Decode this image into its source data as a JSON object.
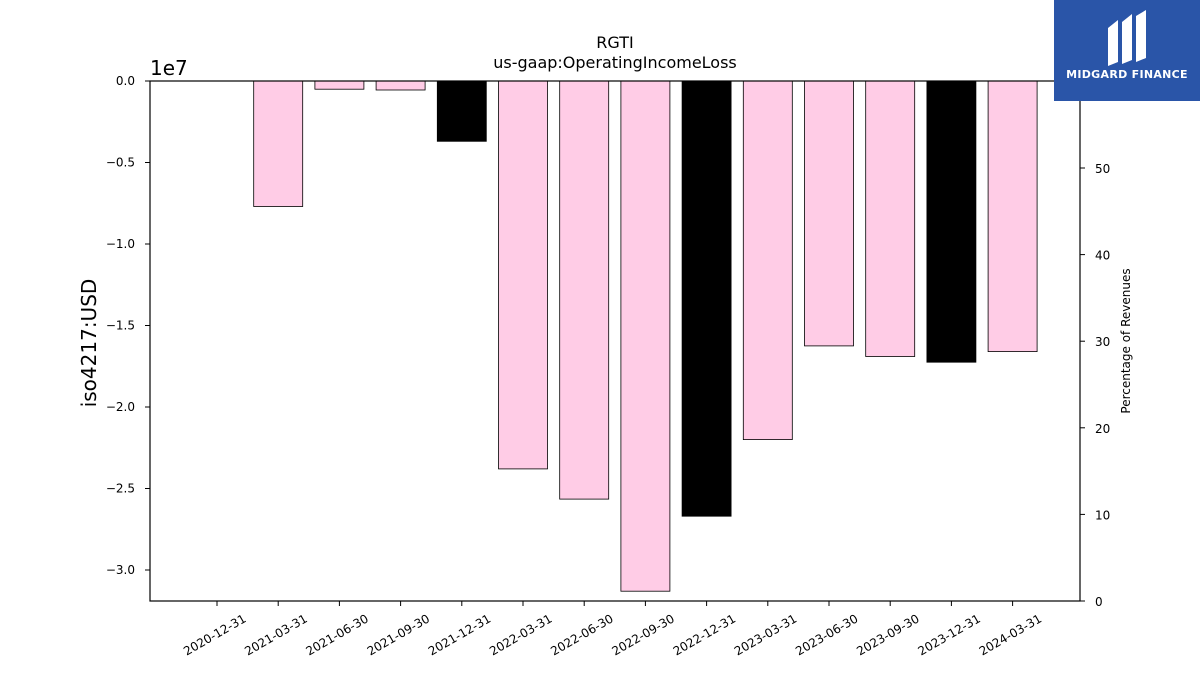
{
  "chart_data": {
    "type": "bar",
    "title": "RGTI",
    "subtitle": "us-gaap:OperatingIncomeLoss",
    "ylabel": "iso4217:USD",
    "y2label": "Percentage of Revenues",
    "offset_label": "1e7",
    "categories": [
      "2020-12-31",
      "2021-03-31",
      "2021-06-30",
      "2021-09-30",
      "2021-12-31",
      "2022-03-31",
      "2022-06-30",
      "2022-09-30",
      "2022-12-31",
      "2023-03-31",
      "2023-06-30",
      "2023-09-30",
      "2023-12-31",
      "2024-03-31"
    ],
    "values": [
      0,
      -7700000,
      -500000,
      -550000,
      -3700000,
      -23800000,
      -25650000,
      -31300000,
      -26700000,
      -22000000,
      -16250000,
      -16900000,
      -17250000,
      -16600000
    ],
    "bar_colors": [
      "#ffcce6",
      "#ffcce6",
      "#ffcce6",
      "#ffcce6",
      "#000000",
      "#ffcce6",
      "#ffcce6",
      "#ffcce6",
      "#000000",
      "#ffcce6",
      "#ffcce6",
      "#ffcce6",
      "#000000",
      "#ffcce6"
    ],
    "ylim": [
      -32000000,
      0
    ],
    "yticks": [
      0,
      -5000000,
      -10000000,
      -15000000,
      -20000000,
      -25000000,
      -30000000
    ],
    "ytick_labels": [
      "0.0",
      "−0.5",
      "−1.0",
      "−1.5",
      "−2.0",
      "−2.5",
      "−3.0"
    ],
    "y2lim": [
      0,
      60
    ],
    "y2ticks": [
      0,
      10,
      20,
      30,
      40,
      50
    ],
    "y2tick_labels": [
      "0",
      "10",
      "20",
      "30",
      "40",
      "50"
    ],
    "grid": false,
    "legend": "none"
  },
  "logo": {
    "text": "MIDGARD FINANCE",
    "accent": "#2a55a8"
  }
}
